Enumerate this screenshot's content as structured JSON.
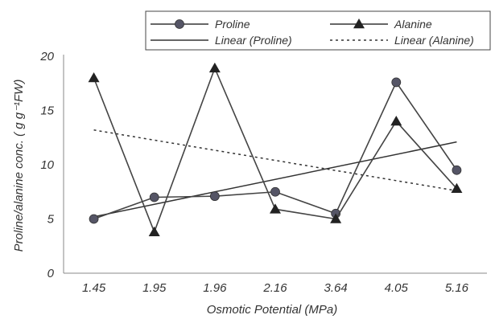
{
  "chart_data": {
    "type": "line",
    "categories": [
      "1.45",
      "1.95",
      "1.96",
      "2.16",
      "3.64",
      "4.05",
      "5.16"
    ],
    "series": [
      {
        "name": "Proline",
        "values": [
          5.0,
          7.0,
          7.1,
          7.5,
          5.5,
          17.6,
          9.5
        ],
        "marker": "circle",
        "color": "#555566"
      },
      {
        "name": "Alanine",
        "values": [
          18.0,
          3.8,
          18.9,
          5.9,
          5.0,
          14.0,
          7.8
        ],
        "marker": "triangle",
        "color": "#222222"
      }
    ],
    "trendlines": [
      {
        "name": "Linear (Proline)",
        "of": "Proline",
        "start": 5.2,
        "end": 12.1,
        "style": "solid"
      },
      {
        "name": "Linear (Alanine)",
        "of": "Alanine",
        "start": 13.2,
        "end": 7.6,
        "style": "dotted"
      }
    ],
    "xlabel": "Osmotic Potential (MPa)",
    "ylabel": "Proline/alanine conc. (  g g⁻¹FW)",
    "ylim": [
      0,
      20
    ],
    "yticks": [
      0,
      5,
      10,
      15,
      20
    ],
    "grid": false,
    "legend_position": "top"
  }
}
